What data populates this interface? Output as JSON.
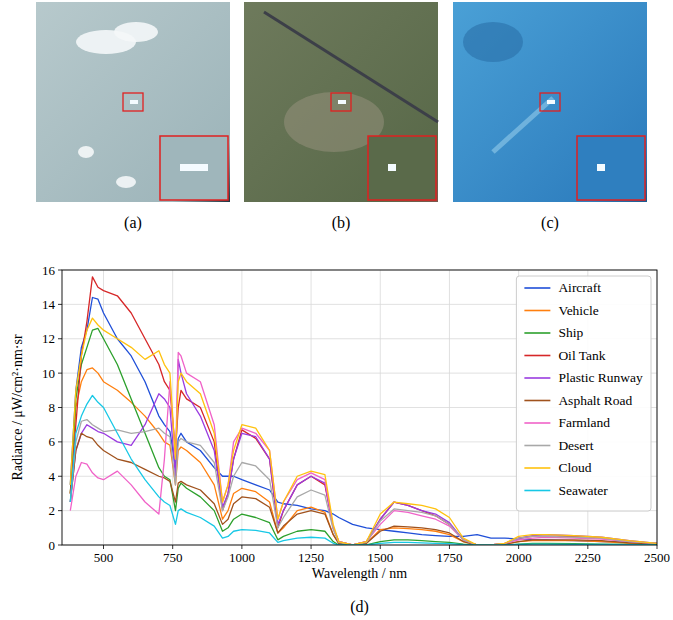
{
  "images": [
    {
      "label": "(a)"
    },
    {
      "label": "(b)"
    },
    {
      "label": "(c)"
    }
  ],
  "chart_data": {
    "type": "line",
    "caption": "(d)",
    "x_label": "Wavelength / nm",
    "y_label": "Radiance / μW/cm²·nm·sr",
    "xlim": [
      350,
      2500
    ],
    "xticks": [
      500,
      750,
      1000,
      1250,
      1500,
      1750,
      2000,
      2250,
      2500
    ],
    "ylim": [
      0,
      16
    ],
    "yticks": [
      0,
      2,
      4,
      6,
      8,
      10,
      12,
      14,
      16
    ],
    "grid": true,
    "legend": "upper right",
    "x": [
      380,
      400,
      420,
      440,
      460,
      480,
      500,
      550,
      600,
      650,
      700,
      720,
      740,
      760,
      770,
      780,
      800,
      850,
      900,
      930,
      950,
      970,
      1000,
      1050,
      1100,
      1130,
      1150,
      1200,
      1250,
      1300,
      1330,
      1350,
      1400,
      1450,
      1500,
      1550,
      1600,
      1650,
      1700,
      1750,
      1800,
      1850,
      1900,
      1950,
      2000,
      2050,
      2100,
      2200,
      2300,
      2400,
      2500
    ],
    "series": [
      {
        "name": "Aircraft",
        "color": "#1f4fd8",
        "values": [
          3.5,
          9,
          11.5,
          12.5,
          14.4,
          14.3,
          13.5,
          12,
          11,
          9.5,
          7.5,
          7,
          6.6,
          4.5,
          6.2,
          6.5,
          6,
          5.5,
          4.5,
          4,
          4,
          4,
          3.8,
          3.5,
          3.2,
          2.5,
          2.4,
          2.3,
          2.1,
          2,
          1.8,
          1.6,
          1.2,
          1,
          0.9,
          0.8,
          0.7,
          0.6,
          0.55,
          0.5,
          0.5,
          0.6,
          0.4,
          0.4,
          0.35,
          0.3,
          0.3,
          0.25,
          0.2,
          0.15,
          0.1
        ]
      },
      {
        "name": "Vehicle",
        "color": "#ff7f0e",
        "values": [
          3,
          8,
          9.5,
          10.2,
          10.3,
          10,
          9.5,
          9,
          8.3,
          7.5,
          6.5,
          6,
          5.8,
          3.5,
          5.5,
          5.7,
          5.5,
          4.8,
          3.5,
          1.5,
          2,
          3,
          3.3,
          3.1,
          2.5,
          0.7,
          1,
          2,
          2.2,
          1.9,
          0.6,
          0.1,
          0,
          0.1,
          0.9,
          1,
          0.95,
          0.9,
          0.8,
          0.6,
          0.2,
          0,
          0,
          0.05,
          0.2,
          0.25,
          0.25,
          0.25,
          0.2,
          0.1,
          0.05
        ]
      },
      {
        "name": "Ship",
        "color": "#2ca02c",
        "values": [
          3,
          8.5,
          10.5,
          11.5,
          12.5,
          12.6,
          12,
          10.5,
          8.5,
          6.5,
          4.5,
          4,
          3.8,
          2,
          3.3,
          3.6,
          3.3,
          2.8,
          2,
          0.8,
          1,
          1.5,
          1.8,
          1.6,
          1.3,
          0.3,
          0.5,
          0.8,
          0.9,
          0.8,
          0.2,
          0,
          0,
          0,
          0.2,
          0.3,
          0.3,
          0.25,
          0.2,
          0.15,
          0.05,
          0,
          0,
          0,
          0.05,
          0.1,
          0.1,
          0.08,
          0.05,
          0.03,
          0.02
        ]
      },
      {
        "name": "Oil Tank",
        "color": "#d62728",
        "values": [
          3,
          7,
          11,
          13,
          15.6,
          15,
          14.8,
          14.5,
          13.5,
          12,
          10.5,
          9.5,
          9,
          5.5,
          8,
          9,
          8.5,
          8,
          6,
          2,
          3,
          5,
          6.7,
          6.2,
          5,
          1,
          2,
          3.5,
          4,
          3.5,
          1,
          0.2,
          0,
          0.2,
          1.5,
          2.5,
          2.3,
          2,
          1.7,
          1.2,
          0.3,
          0,
          0,
          0.1,
          0.4,
          0.5,
          0.5,
          0.5,
          0.4,
          0.2,
          0.1
        ]
      },
      {
        "name": "Plastic Runway",
        "color": "#9a3be0",
        "values": [
          2.5,
          5.5,
          6.5,
          7,
          6.8,
          6.6,
          6.5,
          6,
          5.8,
          7,
          8.8,
          8.5,
          8,
          4,
          10.8,
          10,
          8.8,
          7.5,
          5.5,
          2.2,
          3,
          5,
          6.5,
          6.3,
          5,
          1.2,
          2,
          3.5,
          4,
          3.6,
          1,
          0.2,
          0,
          0.2,
          1.5,
          2.5,
          2.3,
          2,
          1.8,
          1.3,
          0.3,
          0,
          0,
          0.1,
          0.4,
          0.55,
          0.6,
          0.55,
          0.45,
          0.25,
          0.1
        ]
      },
      {
        "name": "Asphalt Road",
        "color": "#a0521d",
        "values": [
          2.5,
          5.5,
          6.5,
          6.3,
          6.2,
          5.8,
          5.5,
          5,
          4.8,
          4.4,
          4,
          3.9,
          3.7,
          2.5,
          3.6,
          3.7,
          3.5,
          3.2,
          2.4,
          1.2,
          1.5,
          2.4,
          2.8,
          2.7,
          2.2,
          0.7,
          1.1,
          1.8,
          2,
          1.8,
          0.6,
          0.1,
          0,
          0.1,
          0.8,
          1.1,
          1.05,
          1,
          0.9,
          0.7,
          0.2,
          0,
          0,
          0.05,
          0.2,
          0.3,
          0.3,
          0.3,
          0.25,
          0.12,
          0.05
        ]
      },
      {
        "name": "Farmland",
        "color": "#f062c8",
        "values": [
          2,
          4,
          4.8,
          4.7,
          4.2,
          3.9,
          3.8,
          4.3,
          3.5,
          2.5,
          1.8,
          5,
          9.5,
          5,
          11.2,
          11,
          10,
          9.5,
          7,
          2.5,
          3.5,
          6,
          6.8,
          6.5,
          5.5,
          1.5,
          2.5,
          3.8,
          4.2,
          3.8,
          1,
          0.2,
          0,
          0.2,
          1.2,
          2,
          1.9,
          1.7,
          1.5,
          1.1,
          0.3,
          0,
          0,
          0.1,
          0.3,
          0.4,
          0.45,
          0.4,
          0.35,
          0.2,
          0.1
        ]
      },
      {
        "name": "Desert",
        "color": "#a8a8a8",
        "values": [
          2.5,
          6,
          7.2,
          7.3,
          7,
          6.8,
          6.6,
          6.7,
          6.5,
          6.6,
          6.8,
          6.5,
          6.3,
          3.5,
          6,
          6.2,
          6,
          5.8,
          4.8,
          2,
          2.8,
          4,
          4.8,
          4.6,
          3.8,
          1,
          1.6,
          2.8,
          3.2,
          2.9,
          0.9,
          0.15,
          0,
          0.15,
          1.4,
          2.1,
          2,
          1.9,
          1.7,
          1.2,
          0.3,
          0,
          0,
          0.1,
          0.4,
          0.5,
          0.5,
          0.45,
          0.4,
          0.2,
          0.1
        ]
      },
      {
        "name": "Cloud",
        "color": "#ffc20e",
        "values": [
          3.5,
          9,
          11,
          12.5,
          13.2,
          12.8,
          12.5,
          12,
          11.5,
          10.8,
          11.3,
          10.5,
          10,
          5,
          9.5,
          10,
          9.5,
          8.8,
          6.5,
          2.5,
          3.5,
          5.5,
          7,
          6.8,
          5.5,
          1.5,
          2.5,
          4,
          4.3,
          4.1,
          1.2,
          0.2,
          0,
          0.2,
          1.8,
          2.5,
          2.4,
          2.3,
          2.1,
          1.6,
          0.4,
          0,
          0,
          0.1,
          0.5,
          0.6,
          0.6,
          0.55,
          0.45,
          0.25,
          0.1
        ]
      },
      {
        "name": "Seawater",
        "color": "#17c8e6",
        "values": [
          2.5,
          6.5,
          7.5,
          8.2,
          8.7,
          8.3,
          8,
          6.5,
          5,
          3.8,
          2.8,
          2.5,
          2.3,
          1.2,
          2,
          2.1,
          1.9,
          1.6,
          1.1,
          0.4,
          0.5,
          0.8,
          0.9,
          0.85,
          0.7,
          0.15,
          0.25,
          0.4,
          0.45,
          0.4,
          0.1,
          0,
          0,
          0,
          0.1,
          0.15,
          0.15,
          0.12,
          0.1,
          0.08,
          0.02,
          0,
          0,
          0,
          0.03,
          0.05,
          0.05,
          0.04,
          0.03,
          0.02,
          0.01
        ]
      }
    ]
  }
}
